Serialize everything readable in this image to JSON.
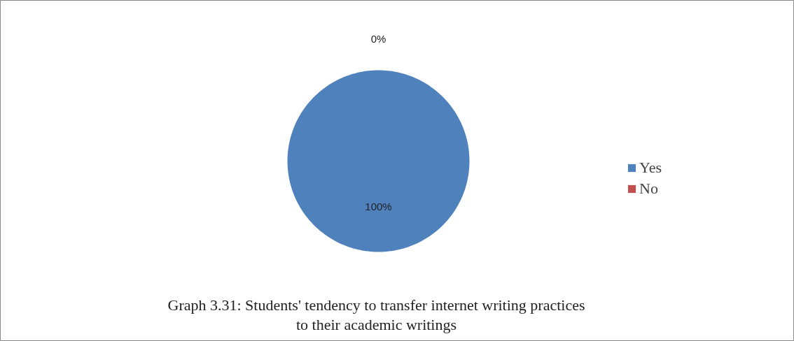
{
  "chart_data": {
    "type": "pie",
    "title": "Graph 3.31: Students' tendency to transfer internet writing practices to their academic writings",
    "categories": [
      "Yes",
      "No"
    ],
    "values": [
      100,
      0
    ],
    "colors": [
      "#4f81bd",
      "#c0504d"
    ],
    "value_labels": [
      "100%",
      "0%"
    ],
    "legend": "right"
  }
}
